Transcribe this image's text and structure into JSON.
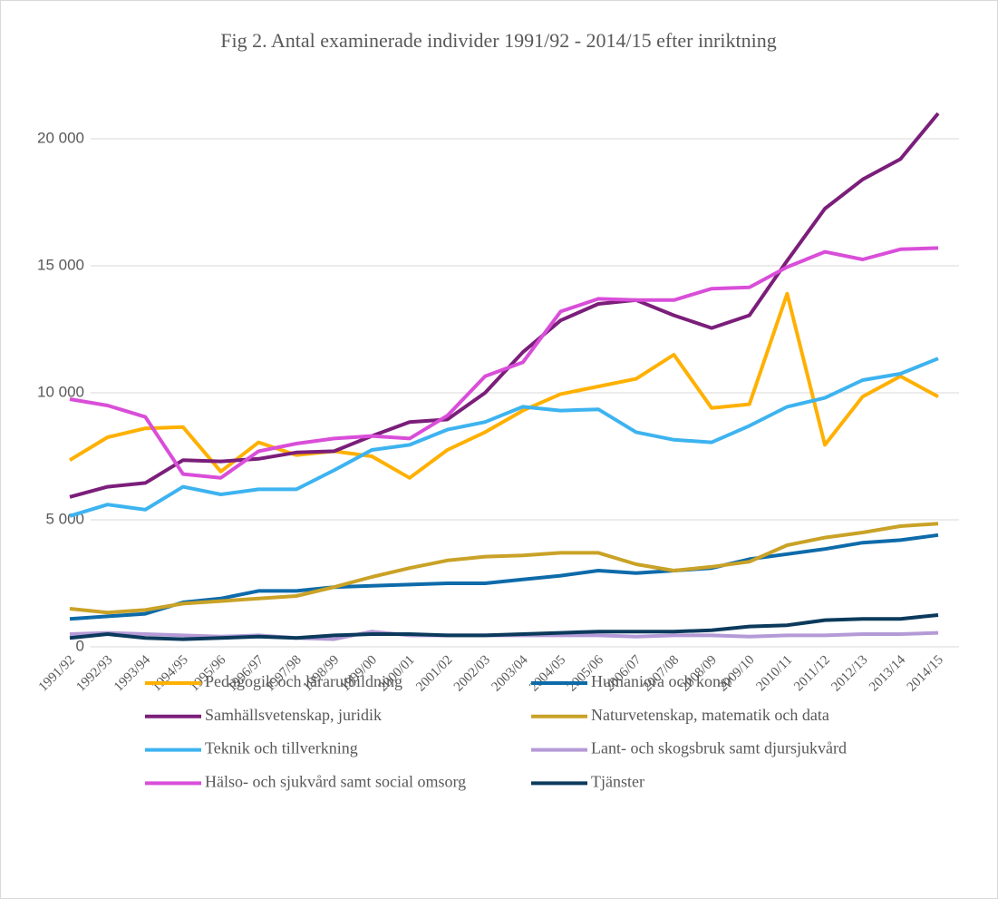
{
  "chart_data": {
    "type": "line",
    "title": "Fig 2. Antal examinerade individer 1991/92 - 2014/15 efter inriktning",
    "categories": [
      "1991/92",
      "1992/93",
      "1993/94",
      "1994/95",
      "1995/96",
      "1996/97",
      "1997/98",
      "1998/99",
      "1999/00",
      "2000/01",
      "2001/02",
      "2002/03",
      "2003/04",
      "2004/05",
      "2005/06",
      "2006/07",
      "2007/08",
      "2008/09",
      "2009/10",
      "2010/11",
      "2011/12",
      "2012/13",
      "2013/14",
      "2014/15"
    ],
    "series": [
      {
        "name": "Pedagogik och lärarutbildning",
        "color": "#FFB000",
        "values": [
          7350,
          8250,
          8600,
          8650,
          6900,
          8050,
          7550,
          7700,
          7500,
          6650,
          7750,
          8450,
          9300,
          9950,
          10250,
          10550,
          11500,
          9400,
          9550,
          13900,
          7950,
          9850,
          10650,
          9850
        ]
      },
      {
        "name": "Humaniora och konst",
        "color": "#0E6BAA",
        "values": [
          1100,
          1200,
          1300,
          1750,
          1900,
          2200,
          2200,
          2350,
          2400,
          2450,
          2500,
          2500,
          2650,
          2800,
          3000,
          2900,
          3000,
          3100,
          3450,
          3650,
          3850,
          4100,
          4200,
          4400
        ]
      },
      {
        "name": "Samhällsvetenskap, juridik",
        "color": "#7B1E7A",
        "values": [
          5900,
          6300,
          6450,
          7350,
          7300,
          7400,
          7650,
          7700,
          8300,
          8850,
          8950,
          10000,
          11600,
          12850,
          13500,
          13650,
          13050,
          12550,
          13050,
          15200,
          17250,
          18400,
          19200,
          21000
        ]
      },
      {
        "name": "Naturvetenskap, matematik och data",
        "color": "#C9A227",
        "values": [
          1500,
          1350,
          1450,
          1700,
          1800,
          1900,
          2000,
          2350,
          2750,
          3100,
          3400,
          3550,
          3600,
          3700,
          3700,
          3250,
          3000,
          3150,
          3350,
          4000,
          4300,
          4500,
          4750,
          4850
        ]
      },
      {
        "name": "Teknik och tillverkning",
        "color": "#3DB3F0",
        "values": [
          5150,
          5600,
          5400,
          6300,
          6000,
          6200,
          6200,
          6950,
          7750,
          7950,
          8550,
          8850,
          9450,
          9300,
          9350,
          8450,
          8150,
          8050,
          8700,
          9450,
          9800,
          10500,
          10750,
          11350
        ]
      },
      {
        "name": "Lant- och skogsbruk samt djursjukvård",
        "color": "#B49AD6",
        "values": [
          500,
          550,
          500,
          450,
          400,
          450,
          350,
          300,
          600,
          450,
          450,
          450,
          450,
          450,
          450,
          400,
          450,
          450,
          400,
          450,
          450,
          500,
          500,
          550
        ]
      },
      {
        "name": "Hälso- och sjukvård samt social omsorg",
        "color": "#D94ED9",
        "values": [
          9750,
          9500,
          9050,
          6800,
          6650,
          7700,
          8000,
          8200,
          8300,
          8200,
          9100,
          10650,
          11200,
          13200,
          13700,
          13650,
          13650,
          14100,
          14150,
          14950,
          15550,
          15250,
          15650,
          15700
        ]
      },
      {
        "name": "Tjänster",
        "color": "#0B3A5C",
        "values": [
          350,
          500,
          350,
          300,
          350,
          400,
          350,
          450,
          500,
          500,
          450,
          450,
          500,
          550,
          600,
          600,
          600,
          650,
          800,
          850,
          1050,
          1100,
          1100,
          1250
        ]
      }
    ],
    "ylim": [
      0,
      22000
    ],
    "yticks": [
      {
        "value": 0,
        "label": "0"
      },
      {
        "value": 5000,
        "label": "5 000"
      },
      {
        "value": 10000,
        "label": "10 000"
      },
      {
        "value": 15000,
        "label": "15 000"
      },
      {
        "value": 20000,
        "label": "20 000"
      }
    ],
    "grid": true
  }
}
